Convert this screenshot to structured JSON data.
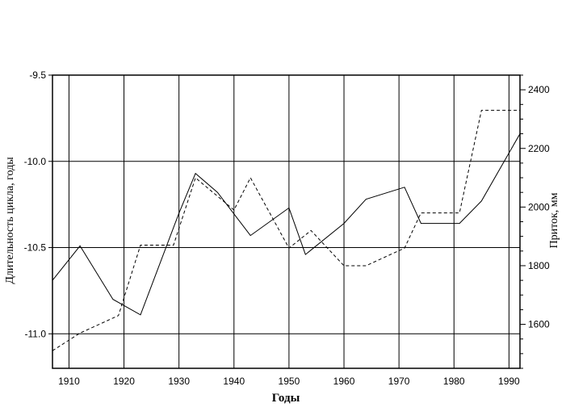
{
  "chart_data": {
    "type": "line",
    "xlabel": "Годы",
    "ylabel_left": "Длительность цикла, годы",
    "ylabel_right": "Приток, мм",
    "xlim": [
      1907,
      1992
    ],
    "ylim_left": [
      -11.2,
      -9.5
    ],
    "ylim_right": [
      1450,
      2450
    ],
    "x_ticks": [
      1910,
      1920,
      1930,
      1940,
      1950,
      1960,
      1970,
      1980,
      1990
    ],
    "x_tick_labels": [
      "1910",
      "1920",
      "1930",
      "1940",
      "1950",
      "1960",
      "1970",
      "1980",
      "1990"
    ],
    "y_left_ticks": [
      -9.5,
      -10.0,
      -10.5,
      -11.0
    ],
    "y_left_tick_labels": [
      "-9.5",
      "-10.0",
      "-10.5",
      "-11.0"
    ],
    "y_right_ticks": [
      1600,
      1800,
      2000,
      2200,
      2400
    ],
    "y_right_tick_labels": [
      "1600",
      "1800",
      "2000",
      "2200",
      "2400"
    ],
    "grid": true,
    "colors": {
      "line": "#000000",
      "grid": "#000000",
      "background": "#ffffff"
    },
    "series": [
      {
        "style": "solid",
        "axis": "left",
        "x": [
          1907,
          1912,
          1918,
          1923,
          1930,
          1933,
          1937,
          1943,
          1950,
          1953,
          1960,
          1964,
          1971,
          1974,
          1981,
          1985,
          1992
        ],
        "y": [
          -10.69,
          -10.49,
          -10.8,
          -10.89,
          -10.3,
          -10.07,
          -10.18,
          -10.43,
          -10.27,
          -10.54,
          -10.36,
          -10.22,
          -10.15,
          -10.36,
          -10.36,
          -10.23,
          -9.84
        ]
      },
      {
        "style": "dashed",
        "axis": "right",
        "x": [
          1907,
          1912,
          1919,
          1923,
          1929,
          1933,
          1940,
          1943,
          1950,
          1954,
          1960,
          1964,
          1971,
          1974,
          1981,
          1985,
          1992
        ],
        "y": [
          1510,
          1570,
          1630,
          1870,
          1870,
          2100,
          1990,
          2100,
          1860,
          1920,
          1800,
          1800,
          1860,
          1980,
          1980,
          2330,
          2330
        ]
      }
    ]
  }
}
